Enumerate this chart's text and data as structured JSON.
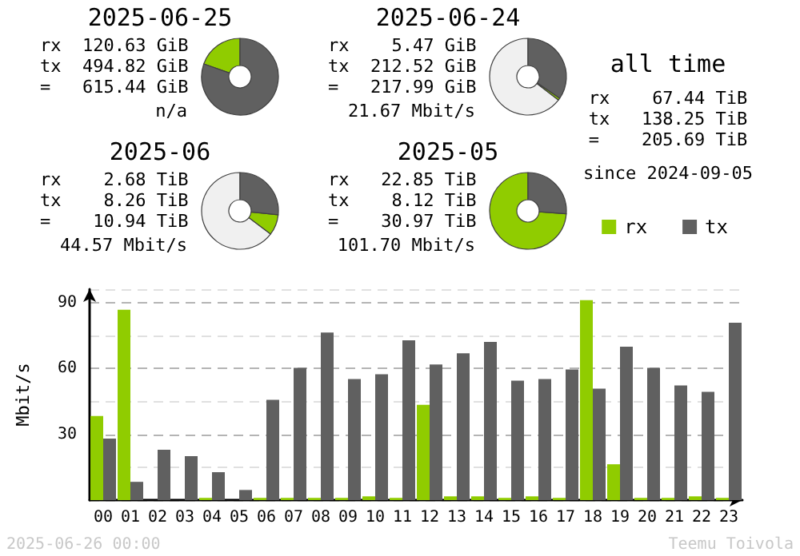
{
  "chart_data": [
    {
      "type": "donut",
      "title": "2025-06-25",
      "categories": [
        null,
        null
      ],
      "values": [
        19.6,
        80.4
      ],
      "colors": [
        "#90cc00",
        "#606060"
      ],
      "annotations": [
        "rx  120.63 GiB",
        "tx  494.82 GiB",
        "=   615.44 GiB",
        "n/a"
      ]
    },
    {
      "type": "donut",
      "title": "2025-06-24",
      "categories": [
        null,
        null,
        null
      ],
      "values": [
        64.6,
        0.9,
        34.5
      ],
      "colors": [
        "#f0f0f0",
        "#90cc00",
        "#606060"
      ],
      "annotations": [
        "rx    5.47 GiB",
        "tx  212.52 GiB",
        "=   217.99 GiB",
        "21.67 Mbit/s"
      ]
    },
    {
      "type": "donut",
      "title": "2025-06",
      "categories": [
        null,
        null,
        null
      ],
      "values": [
        64.7,
        8.7,
        26.6
      ],
      "colors": [
        "#f0f0f0",
        "#90cc00",
        "#606060"
      ],
      "annotations": [
        "rx    2.68 TiB",
        "tx    8.26 TiB",
        "=    10.94 TiB",
        "44.57 Mbit/s"
      ]
    },
    {
      "type": "donut",
      "title": "2025-05",
      "categories": [
        null,
        null
      ],
      "values": [
        73.8,
        26.2
      ],
      "colors": [
        "#90cc00",
        "#606060"
      ],
      "annotations": [
        "rx   22.85 TiB",
        "tx    8.12 TiB",
        "=    30.97 TiB",
        "101.70 Mbit/s"
      ]
    },
    {
      "type": "other",
      "title": "all time",
      "annotations": [
        "rx    67.44 TiB",
        "tx   138.25 TiB",
        "=    205.69 TiB",
        "since 2024-09-05"
      ]
    },
    {
      "type": "bar",
      "categories": [
        "00",
        "01",
        "02",
        "03",
        "04",
        "05",
        "06",
        "07",
        "08",
        "09",
        "10",
        "11",
        "12",
        "13",
        "14",
        "15",
        "16",
        "17",
        "18",
        "19",
        "20",
        "21",
        "22",
        "23"
      ],
      "series": [
        {
          "name": "rx",
          "color": "#90cc00",
          "values": [
            38.3,
            86.6,
            0,
            0,
            1,
            0,
            1,
            1,
            1,
            1,
            1.7,
            1,
            43.4,
            1.7,
            1.7,
            1,
            1.7,
            1,
            91,
            16.3,
            1,
            1,
            1.7,
            1
          ]
        },
        {
          "name": "tx",
          "color": "#606060",
          "values": [
            28,
            8.3,
            22.9,
            20,
            12.7,
            4.6,
            45.6,
            60.2,
            76.3,
            55.1,
            57.3,
            72.7,
            61.7,
            66.8,
            72,
            54.4,
            55.1,
            59.5,
            50.7,
            69.8,
            60.2,
            52.2,
            49.3,
            80.7
          ]
        }
      ],
      "ylabel": "Mbit/s",
      "ylim": [
        0,
        96
      ],
      "yticks": [
        {
          "value": 0,
          "label": null
        },
        {
          "value": 15,
          "label": null
        },
        30,
        {
          "value": 45,
          "label": null
        },
        60,
        {
          "value": 75,
          "label": null
        },
        90
      ],
      "grid": "y",
      "legend": "top right",
      "annotations": [
        "2025-06-26 00:00",
        "Teemu Toivola"
      ]
    }
  ]
}
